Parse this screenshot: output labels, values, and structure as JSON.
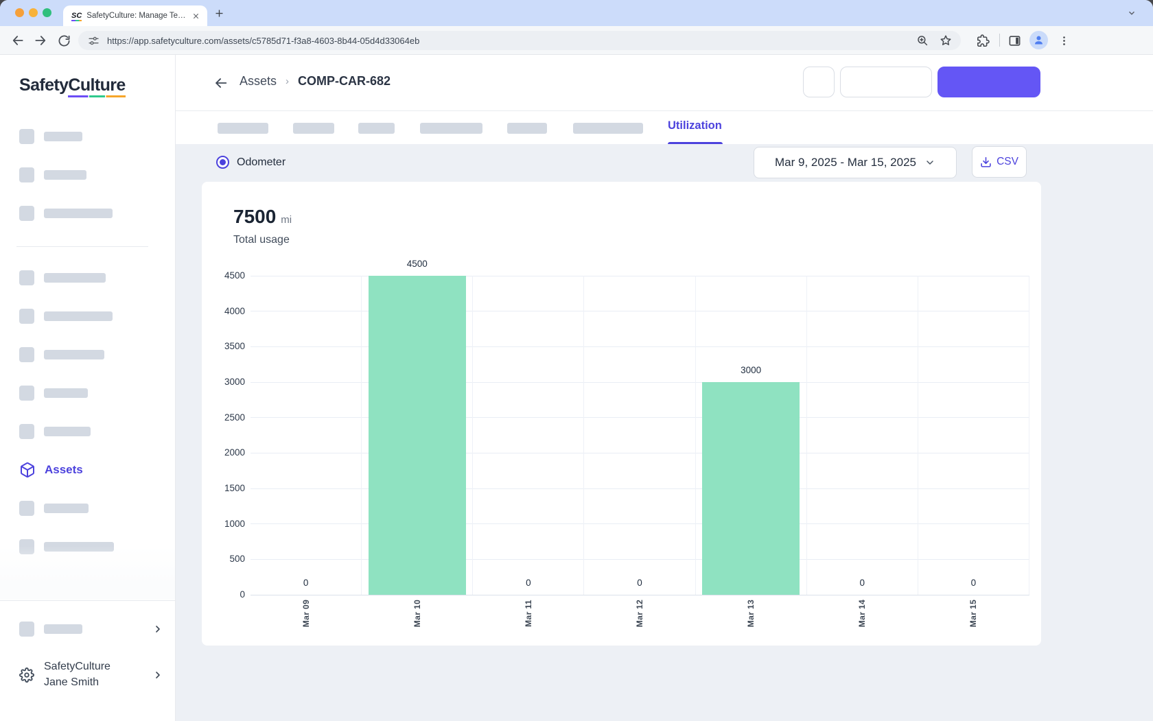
{
  "browser": {
    "tab_title": "SafetyCulture: Manage Teams and...",
    "favicon_text": "SC",
    "url": "https://app.safetyculture.com/assets/c5785d71-f3a8-4603-8b44-05d4d33064eb"
  },
  "sidebar": {
    "logo_text": "SafetyCulture",
    "assets_item_label": "Assets",
    "org_name": "SafetyCulture",
    "user_name": "Jane Smith"
  },
  "header": {
    "breadcrumb_parent": "Assets",
    "breadcrumb_separator": "›",
    "breadcrumb_current": "COMP-CAR-682"
  },
  "tabs": {
    "active_label": "Utilization"
  },
  "controls": {
    "metric_radio_label": "Odometer",
    "date_range_value": "Mar 9, 2025 - Mar 15, 2025",
    "csv_button_label": "CSV"
  },
  "chart_data": {
    "type": "bar",
    "total_value": "7500",
    "unit": "mi",
    "subtitle": "Total usage",
    "categories": [
      "Mar 09",
      "Mar 10",
      "Mar 11",
      "Mar 12",
      "Mar 13",
      "Mar 14",
      "Mar 15"
    ],
    "values": [
      0,
      4500,
      0,
      0,
      3000,
      0,
      0
    ],
    "y_ticks": [
      0,
      500,
      1000,
      1500,
      2000,
      2500,
      3000,
      3500,
      4000,
      4500
    ],
    "ylim": [
      0,
      4500
    ],
    "grid": true,
    "legend_position": "none",
    "bar_labels": true
  },
  "colors": {
    "accent": "#4c42dd",
    "primary_button": "#6456f5",
    "bar": "#8fe2c1",
    "skeleton": "#d3d9e2"
  }
}
